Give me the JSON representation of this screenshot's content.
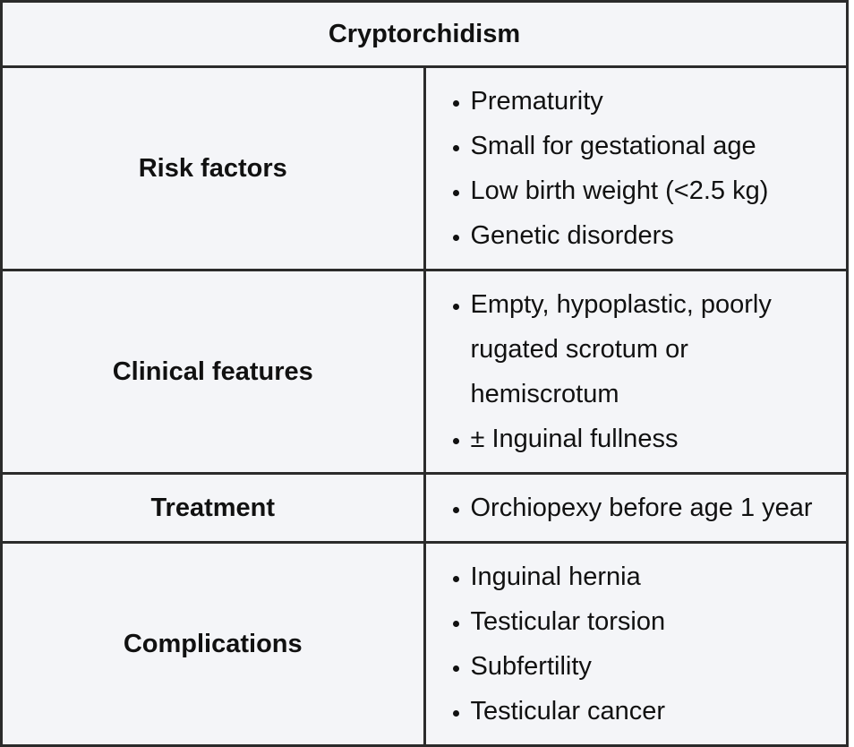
{
  "title": "Cryptorchidism",
  "rows": [
    {
      "label": "Risk factors",
      "items": [
        "Prematurity",
        "Small for gestational age",
        "Low birth weight (<2.5 kg)",
        "Genetic disorders"
      ]
    },
    {
      "label": "Clinical features",
      "items": [
        "Empty, hypoplastic, poorly rugated scrotum or hemiscrotum",
        "± Inguinal fullness"
      ]
    },
    {
      "label": "Treatment",
      "items": [
        "Orchiopexy before age 1 year"
      ]
    },
    {
      "label": "Complications",
      "items": [
        "Inguinal hernia",
        "Testicular torsion",
        "Subfertility",
        "Testicular cancer"
      ]
    }
  ]
}
